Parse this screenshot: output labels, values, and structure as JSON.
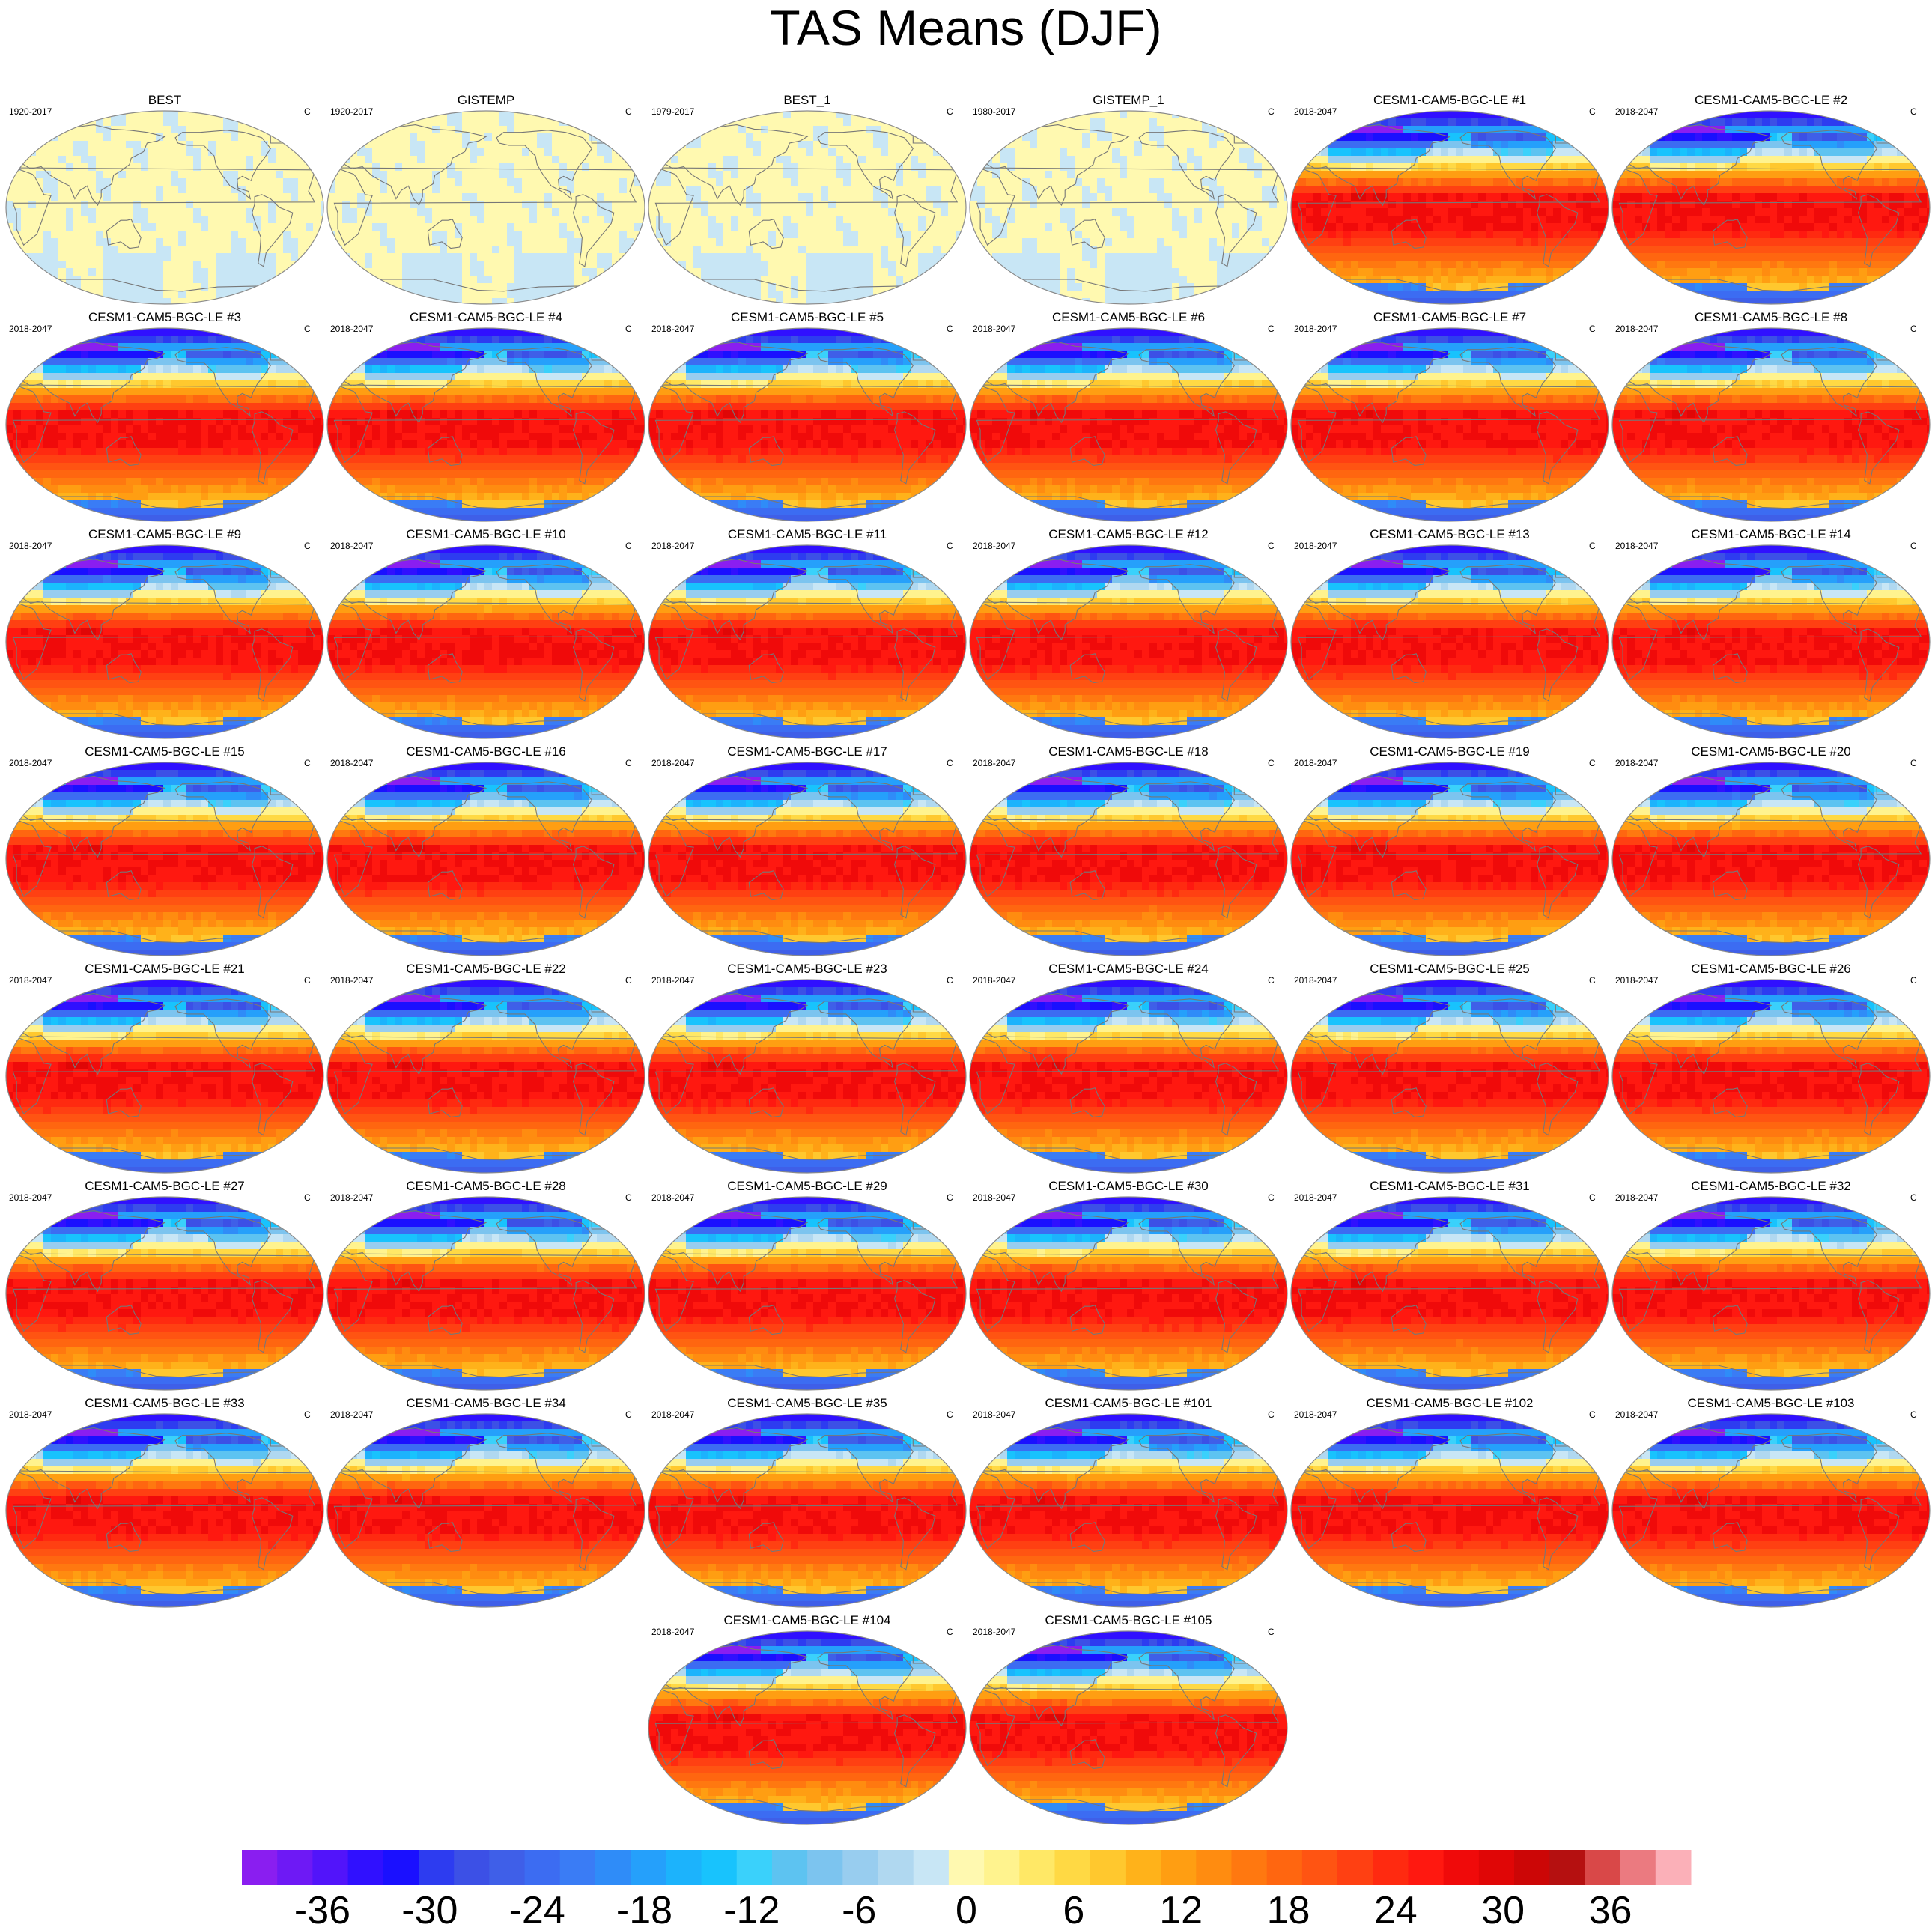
{
  "title": "TAS Means (DJF)",
  "panels": [
    {
      "name": "BEST",
      "period": "1920-2017",
      "units": "C",
      "kind": "obs"
    },
    {
      "name": "GISTEMP",
      "period": "1920-2017",
      "units": "C",
      "kind": "obs"
    },
    {
      "name": "BEST_1",
      "period": "1979-2017",
      "units": "C",
      "kind": "obs"
    },
    {
      "name": "GISTEMP_1",
      "period": "1980-2017",
      "units": "C",
      "kind": "obs"
    },
    {
      "name": "CESM1-CAM5-BGC-LE #1",
      "period": "2018-2047",
      "units": "C",
      "kind": "model"
    },
    {
      "name": "CESM1-CAM5-BGC-LE #2",
      "period": "2018-2047",
      "units": "C",
      "kind": "model"
    },
    {
      "name": "CESM1-CAM5-BGC-LE #3",
      "period": "2018-2047",
      "units": "C",
      "kind": "model"
    },
    {
      "name": "CESM1-CAM5-BGC-LE #4",
      "period": "2018-2047",
      "units": "C",
      "kind": "model"
    },
    {
      "name": "CESM1-CAM5-BGC-LE #5",
      "period": "2018-2047",
      "units": "C",
      "kind": "model"
    },
    {
      "name": "CESM1-CAM5-BGC-LE #6",
      "period": "2018-2047",
      "units": "C",
      "kind": "model"
    },
    {
      "name": "CESM1-CAM5-BGC-LE #7",
      "period": "2018-2047",
      "units": "C",
      "kind": "model"
    },
    {
      "name": "CESM1-CAM5-BGC-LE #8",
      "period": "2018-2047",
      "units": "C",
      "kind": "model"
    },
    {
      "name": "CESM1-CAM5-BGC-LE #9",
      "period": "2018-2047",
      "units": "C",
      "kind": "model"
    },
    {
      "name": "CESM1-CAM5-BGC-LE #10",
      "period": "2018-2047",
      "units": "C",
      "kind": "model"
    },
    {
      "name": "CESM1-CAM5-BGC-LE #11",
      "period": "2018-2047",
      "units": "C",
      "kind": "model"
    },
    {
      "name": "CESM1-CAM5-BGC-LE #12",
      "period": "2018-2047",
      "units": "C",
      "kind": "model"
    },
    {
      "name": "CESM1-CAM5-BGC-LE #13",
      "period": "2018-2047",
      "units": "C",
      "kind": "model"
    },
    {
      "name": "CESM1-CAM5-BGC-LE #14",
      "period": "2018-2047",
      "units": "C",
      "kind": "model"
    },
    {
      "name": "CESM1-CAM5-BGC-LE #15",
      "period": "2018-2047",
      "units": "C",
      "kind": "model"
    },
    {
      "name": "CESM1-CAM5-BGC-LE #16",
      "period": "2018-2047",
      "units": "C",
      "kind": "model"
    },
    {
      "name": "CESM1-CAM5-BGC-LE #17",
      "period": "2018-2047",
      "units": "C",
      "kind": "model"
    },
    {
      "name": "CESM1-CAM5-BGC-LE #18",
      "period": "2018-2047",
      "units": "C",
      "kind": "model"
    },
    {
      "name": "CESM1-CAM5-BGC-LE #19",
      "period": "2018-2047",
      "units": "C",
      "kind": "model"
    },
    {
      "name": "CESM1-CAM5-BGC-LE #20",
      "period": "2018-2047",
      "units": "C",
      "kind": "model"
    },
    {
      "name": "CESM1-CAM5-BGC-LE #21",
      "period": "2018-2047",
      "units": "C",
      "kind": "model"
    },
    {
      "name": "CESM1-CAM5-BGC-LE #22",
      "period": "2018-2047",
      "units": "C",
      "kind": "model"
    },
    {
      "name": "CESM1-CAM5-BGC-LE #23",
      "period": "2018-2047",
      "units": "C",
      "kind": "model"
    },
    {
      "name": "CESM1-CAM5-BGC-LE #24",
      "period": "2018-2047",
      "units": "C",
      "kind": "model"
    },
    {
      "name": "CESM1-CAM5-BGC-LE #25",
      "period": "2018-2047",
      "units": "C",
      "kind": "model"
    },
    {
      "name": "CESM1-CAM5-BGC-LE #26",
      "period": "2018-2047",
      "units": "C",
      "kind": "model"
    },
    {
      "name": "CESM1-CAM5-BGC-LE #27",
      "period": "2018-2047",
      "units": "C",
      "kind": "model"
    },
    {
      "name": "CESM1-CAM5-BGC-LE #28",
      "period": "2018-2047",
      "units": "C",
      "kind": "model"
    },
    {
      "name": "CESM1-CAM5-BGC-LE #29",
      "period": "2018-2047",
      "units": "C",
      "kind": "model"
    },
    {
      "name": "CESM1-CAM5-BGC-LE #30",
      "period": "2018-2047",
      "units": "C",
      "kind": "model"
    },
    {
      "name": "CESM1-CAM5-BGC-LE #31",
      "period": "2018-2047",
      "units": "C",
      "kind": "model"
    },
    {
      "name": "CESM1-CAM5-BGC-LE #32",
      "period": "2018-2047",
      "units": "C",
      "kind": "model"
    },
    {
      "name": "CESM1-CAM5-BGC-LE #33",
      "period": "2018-2047",
      "units": "C",
      "kind": "model"
    },
    {
      "name": "CESM1-CAM5-BGC-LE #34",
      "period": "2018-2047",
      "units": "C",
      "kind": "model"
    },
    {
      "name": "CESM1-CAM5-BGC-LE #35",
      "period": "2018-2047",
      "units": "C",
      "kind": "model"
    },
    {
      "name": "CESM1-CAM5-BGC-LE #101",
      "period": "2018-2047",
      "units": "C",
      "kind": "model"
    },
    {
      "name": "CESM1-CAM5-BGC-LE #102",
      "period": "2018-2047",
      "units": "C",
      "kind": "model"
    },
    {
      "name": "CESM1-CAM5-BGC-LE #103",
      "period": "2018-2047",
      "units": "C",
      "kind": "model"
    },
    {
      "name": "CESM1-CAM5-BGC-LE #104",
      "period": "2018-2047",
      "units": "C",
      "kind": "model"
    },
    {
      "name": "CESM1-CAM5-BGC-LE #105",
      "period": "2018-2047",
      "units": "C",
      "kind": "model"
    }
  ],
  "chart_data": {
    "type": "heatmap",
    "title": "TAS Means (DJF)",
    "projection": "Robinson (Pacific-centered)",
    "layout": "6 columns, 8 rows; last row centered with 2 panels",
    "units": "C",
    "color_levels": [
      -40,
      -38,
      -36,
      -34,
      -32,
      -30,
      -28,
      -26,
      -24,
      -22,
      -20,
      -18,
      -16,
      -14,
      -12,
      -10,
      -8,
      -6,
      -4,
      -2,
      0,
      2,
      4,
      6,
      8,
      10,
      12,
      14,
      16,
      18,
      20,
      22,
      24,
      26,
      28,
      30,
      32,
      34,
      36,
      38,
      40
    ],
    "colors": [
      "#8a1ef0",
      "#6e19f5",
      "#5214fa",
      "#3010ff",
      "#1a10ff",
      "#2d3cf0",
      "#3c50e6",
      "#3f5fe8",
      "#3c6cf2",
      "#3a7cf5",
      "#2f8cf8",
      "#25a0fb",
      "#1cb3fc",
      "#18c3fd",
      "#3ad1fb",
      "#5dc3f1",
      "#7cc4ef",
      "#98cdef",
      "#b0d8f0",
      "#c8e6f5",
      "#fff9b0",
      "#fff38e",
      "#ffe866",
      "#ffd944",
      "#ffc82e",
      "#ffb21a",
      "#ff9e12",
      "#ff8c10",
      "#ff7810",
      "#ff6610",
      "#ff5412",
      "#ff4012",
      "#ff2a10",
      "#ff1810",
      "#f00a0a",
      "#e00606",
      "#cc0606",
      "#b51010",
      "#d94848",
      "#eb7a80",
      "#fbb0b8"
    ],
    "colorbar_ticks": [
      -36,
      -30,
      -24,
      -18,
      -12,
      -6,
      0,
      6,
      12,
      18,
      24,
      30,
      36
    ],
    "colorbar_tick_labels": [
      "-36",
      "-30",
      "-24",
      "-18",
      "-12",
      "-6",
      "0",
      "6",
      "12",
      "18",
      "24",
      "30",
      "36"
    ],
    "colorbar_range": [
      -40,
      40
    ],
    "obs_panel_pattern": "mostly 0 to 2 C (pale yellow) with scattered -2 to 0 C (light blue) patches",
    "model_panel_pattern": "about 26-30 C in the tropics, below -30 C over northern Siberia/Arctic and Antarctica"
  }
}
